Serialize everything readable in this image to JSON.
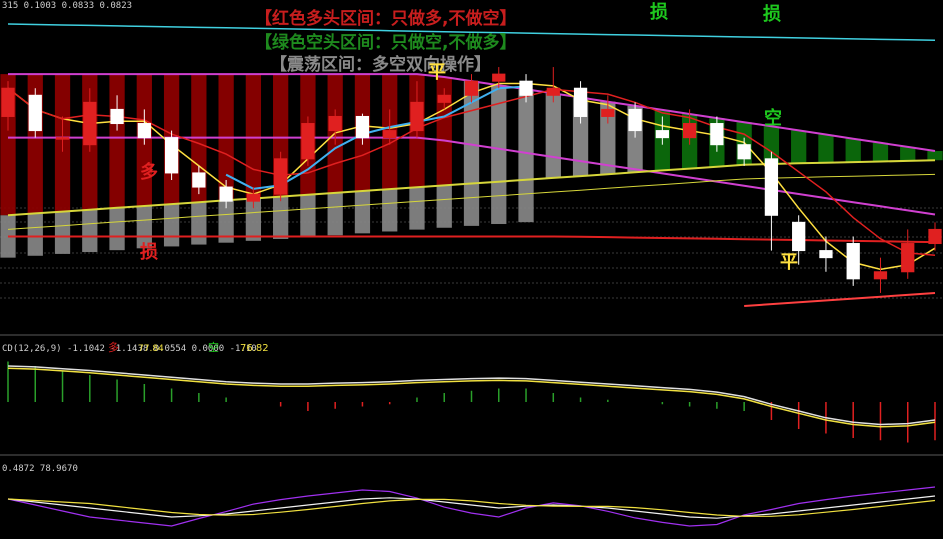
{
  "colors": {
    "bg": "#000000",
    "bull_candle": "#e02020",
    "bear_candle": "#ffffff",
    "band_red": "#8b0000",
    "band_gray": "#8a8a8a",
    "band_green": "#0c6b0c",
    "upper_band": "#d040d0",
    "mid_line": "#d6d63a",
    "ma_yellow": "#ffe040",
    "ma_red": "#e02020",
    "ma_blue": "#40b0f0",
    "cyan_top": "#40d0e0",
    "macd_white": "#e0e0e0",
    "macd_yellow": "#f0e040",
    "kdj_k": "#f0f0f0",
    "kdj_d": "#f0e040",
    "kdj_j": "#a030f0"
  },
  "main_panel": {
    "header": "315 0.1003 0.0833 0.0823",
    "legend_lines": [
      "【红色多头区间：只做多,不做空】",
      "【绿色空头区间：只做空,不做多】",
      "【震荡区间：多空双向操作】"
    ],
    "signals": [
      {
        "text": "损",
        "color": "#1ec81e",
        "idx": 21
      },
      {
        "text": "损",
        "color": "#1ec81e",
        "idx": 25
      },
      {
        "text": "平",
        "color": "#ffe040",
        "idx": 14
      },
      {
        "text": "空",
        "color": "#1ec81e",
        "idx": 24
      },
      {
        "text": "多",
        "color": "#e02020",
        "idx": 4
      },
      {
        "text": "损",
        "color": "#e02020",
        "idx": 4
      },
      {
        "text": "平",
        "color": "#ffe040",
        "idx": 26
      }
    ]
  },
  "macd_panel": {
    "header": "CD(12,26,9) -1.1042 -1.1438 0.0554 0.0000 -1.10",
    "tags": [
      "多",
      "77.84",
      "空"
    ],
    "value_right": "76.82"
  },
  "kdj_panel": {
    "header": "0.4872 78.9670"
  },
  "chart_data": {
    "type": "candlestick",
    "candles": [
      {
        "o": 0.7,
        "c": 0.9,
        "h": 0.95,
        "l": 0.6
      },
      {
        "o": 0.85,
        "c": 0.6,
        "h": 0.9,
        "l": 0.55
      },
      {
        "o": 0.55,
        "c": 0.55,
        "h": 0.7,
        "l": 0.45
      },
      {
        "o": 0.5,
        "c": 0.8,
        "h": 0.9,
        "l": 0.45
      },
      {
        "o": 0.75,
        "c": 0.65,
        "h": 0.85,
        "l": 0.6
      },
      {
        "o": 0.65,
        "c": 0.55,
        "h": 0.75,
        "l": 0.5
      },
      {
        "o": 0.55,
        "c": 0.3,
        "h": 0.6,
        "l": 0.25
      },
      {
        "o": 0.3,
        "c": 0.2,
        "h": 0.35,
        "l": 0.15
      },
      {
        "o": 0.2,
        "c": 0.1,
        "h": 0.25,
        "l": 0.05
      },
      {
        "o": 0.1,
        "c": 0.15,
        "h": 0.2,
        "l": 0.05
      },
      {
        "o": 0.15,
        "c": 0.4,
        "h": 0.45,
        "l": 0.1
      },
      {
        "o": 0.4,
        "c": 0.65,
        "h": 0.7,
        "l": 0.35
      },
      {
        "o": 0.6,
        "c": 0.7,
        "h": 0.75,
        "l": 0.5
      },
      {
        "o": 0.7,
        "c": 0.55,
        "h": 0.72,
        "l": 0.5
      },
      {
        "o": 0.55,
        "c": 0.6,
        "h": 0.75,
        "l": 0.5
      },
      {
        "o": 0.6,
        "c": 0.8,
        "h": 0.95,
        "l": 0.55
      },
      {
        "o": 0.8,
        "c": 0.85,
        "h": 0.9,
        "l": 0.75
      },
      {
        "o": 0.85,
        "c": 0.95,
        "h": 1.0,
        "l": 0.8
      },
      {
        "o": 0.95,
        "c": 1.0,
        "h": 1.05,
        "l": 0.9
      },
      {
        "o": 0.95,
        "c": 0.85,
        "h": 1.0,
        "l": 0.8
      },
      {
        "o": 0.85,
        "c": 0.9,
        "h": 1.05,
        "l": 0.8
      },
      {
        "o": 0.9,
        "c": 0.7,
        "h": 0.95,
        "l": 0.65
      },
      {
        "o": 0.7,
        "c": 0.75,
        "h": 0.85,
        "l": 0.65
      },
      {
        "o": 0.75,
        "c": 0.6,
        "h": 0.8,
        "l": 0.55
      },
      {
        "o": 0.6,
        "c": 0.55,
        "h": 0.7,
        "l": 0.5
      },
      {
        "o": 0.55,
        "c": 0.65,
        "h": 0.75,
        "l": 0.5
      },
      {
        "o": 0.65,
        "c": 0.5,
        "h": 0.7,
        "l": 0.45
      },
      {
        "o": 0.5,
        "c": 0.4,
        "h": 0.55,
        "l": 0.35
      },
      {
        "o": 0.4,
        "c": 0.0,
        "h": 0.45,
        "l": -0.25
      },
      {
        "o": -0.05,
        "c": -0.25,
        "h": 0.0,
        "l": -0.35
      },
      {
        "o": -0.25,
        "c": -0.3,
        "h": -0.15,
        "l": -0.4
      },
      {
        "o": -0.2,
        "c": -0.45,
        "h": -0.15,
        "l": -0.5
      },
      {
        "o": -0.45,
        "c": -0.4,
        "h": -0.3,
        "l": -0.55
      },
      {
        "o": -0.4,
        "c": -0.2,
        "h": -0.1,
        "l": -0.45
      },
      {
        "o": -0.2,
        "c": -0.1,
        "h": -0.05,
        "l": -0.25
      }
    ],
    "macd_hist": [
      0.9,
      0.8,
      0.7,
      0.6,
      0.5,
      0.4,
      0.3,
      0.2,
      0.1,
      0.0,
      -0.1,
      -0.2,
      -0.15,
      -0.1,
      -0.05,
      0.1,
      0.2,
      0.25,
      0.3,
      0.3,
      0.2,
      0.1,
      0.05,
      0.0,
      -0.05,
      -0.1,
      -0.15,
      -0.2,
      -0.4,
      -0.6,
      -0.7,
      -0.8,
      -0.85,
      -0.9,
      -0.85
    ],
    "macd_dif": [
      0.8,
      0.78,
      0.74,
      0.7,
      0.65,
      0.6,
      0.55,
      0.5,
      0.45,
      0.42,
      0.4,
      0.4,
      0.42,
      0.43,
      0.45,
      0.48,
      0.5,
      0.52,
      0.53,
      0.52,
      0.48,
      0.44,
      0.4,
      0.36,
      0.32,
      0.28,
      0.22,
      0.12,
      -0.05,
      -0.2,
      -0.35,
      -0.45,
      -0.5,
      -0.48,
      -0.4
    ],
    "kdj_k": [
      60,
      55,
      50,
      45,
      40,
      35,
      30,
      32,
      35,
      40,
      45,
      50,
      55,
      60,
      62,
      60,
      55,
      50,
      45,
      48,
      50,
      48,
      45,
      40,
      35,
      30,
      28,
      32,
      35,
      40,
      45,
      50,
      55,
      60,
      65
    ]
  }
}
